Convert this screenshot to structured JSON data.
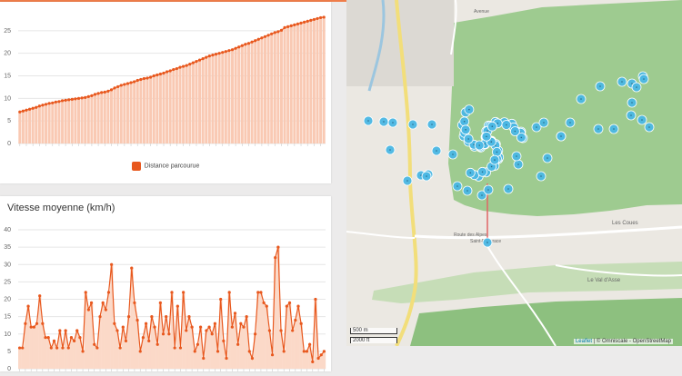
{
  "distance_panel": {
    "legend_label": "Distance parcourue",
    "color": "#e8581e",
    "fill_color": "#f9c9b3"
  },
  "speed_panel": {
    "title": "Vitesse moyenne (km/h)",
    "color": "#e8581e",
    "fill_color": "#fbd9c8"
  },
  "chart_data": [
    {
      "type": "area",
      "title": "",
      "series": [
        {
          "name": "Distance parcourue",
          "values": [
            7.0,
            7.2,
            7.4,
            7.6,
            7.8,
            8.0,
            8.3,
            8.5,
            8.7,
            8.9,
            9.0,
            9.2,
            9.3,
            9.5,
            9.6,
            9.7,
            9.8,
            9.9,
            10.0,
            10.1,
            10.2,
            10.4,
            10.6,
            10.9,
            11.1,
            11.3,
            11.4,
            11.6,
            11.9,
            12.3,
            12.6,
            12.9,
            13.1,
            13.3,
            13.5,
            13.7,
            14.0,
            14.2,
            14.4,
            14.5,
            14.7,
            15.0,
            15.2,
            15.4,
            15.6,
            15.9,
            16.1,
            16.4,
            16.6,
            16.9,
            17.1,
            17.3,
            17.6,
            17.9,
            18.2,
            18.5,
            18.8,
            19.1,
            19.4,
            19.6,
            19.8,
            20.0,
            20.2,
            20.4,
            20.6,
            20.8,
            21.1,
            21.4,
            21.7,
            22.0,
            22.2,
            22.5,
            22.8,
            23.1,
            23.4,
            23.7,
            24.0,
            24.3,
            24.6,
            24.8,
            25.1,
            25.7,
            25.9,
            26.1,
            26.3,
            26.5,
            26.7,
            26.9,
            27.1,
            27.3,
            27.5,
            27.7,
            27.9,
            28.0
          ]
        }
      ],
      "ylim": [
        0,
        30
      ],
      "y_ticks": [
        "0",
        "5",
        "10",
        "15",
        "20",
        "25"
      ],
      "grid": true,
      "legend_position": "bottom"
    },
    {
      "type": "line",
      "title": "Vitesse moyenne (km/h)",
      "series": [
        {
          "name": "",
          "values": [
            6,
            6,
            13,
            18,
            12,
            12,
            13,
            21,
            13,
            9,
            9,
            6,
            8,
            6,
            11,
            6,
            11,
            6,
            9,
            8,
            11,
            9,
            5,
            22,
            17,
            19,
            7,
            6,
            15,
            19,
            17,
            22,
            30,
            13,
            11,
            6,
            12,
            8,
            15,
            29,
            19,
            14,
            5,
            9,
            13,
            8,
            15,
            12,
            7,
            19,
            10,
            15,
            10,
            22,
            6,
            18,
            6,
            22,
            11,
            15,
            12,
            5,
            7,
            12,
            3,
            11,
            12,
            10,
            13,
            5,
            20,
            8,
            3,
            22,
            12,
            16,
            7,
            13,
            12,
            15,
            5,
            3,
            10,
            22,
            22,
            19,
            18,
            11,
            4,
            32,
            35,
            11,
            5,
            18,
            19,
            11,
            14,
            18,
            13,
            5,
            5,
            7,
            2,
            20,
            3,
            4,
            5
          ]
        }
      ],
      "ylim": [
        0,
        40
      ],
      "y_ticks": [
        "0",
        "5",
        "10",
        "15",
        "20",
        "25",
        "30",
        "35",
        "40"
      ],
      "grid": true
    }
  ],
  "map": {
    "place_labels": [
      "Les Coues",
      "Route des Alpes",
      "Saint-Pancrace",
      "Le Val d'Asse",
      "Avenue"
    ],
    "scale_metric": "500 m",
    "scale_imperial": "2000 ft",
    "attribution_leaflet": "Leaflet",
    "attribution_rest": " | © Omniscale - OpenStreetMap",
    "marker_color": "#4bb7e4",
    "forest_color": "#9ecb90",
    "road_color": "#f2de7a",
    "marker_count": 93
  }
}
